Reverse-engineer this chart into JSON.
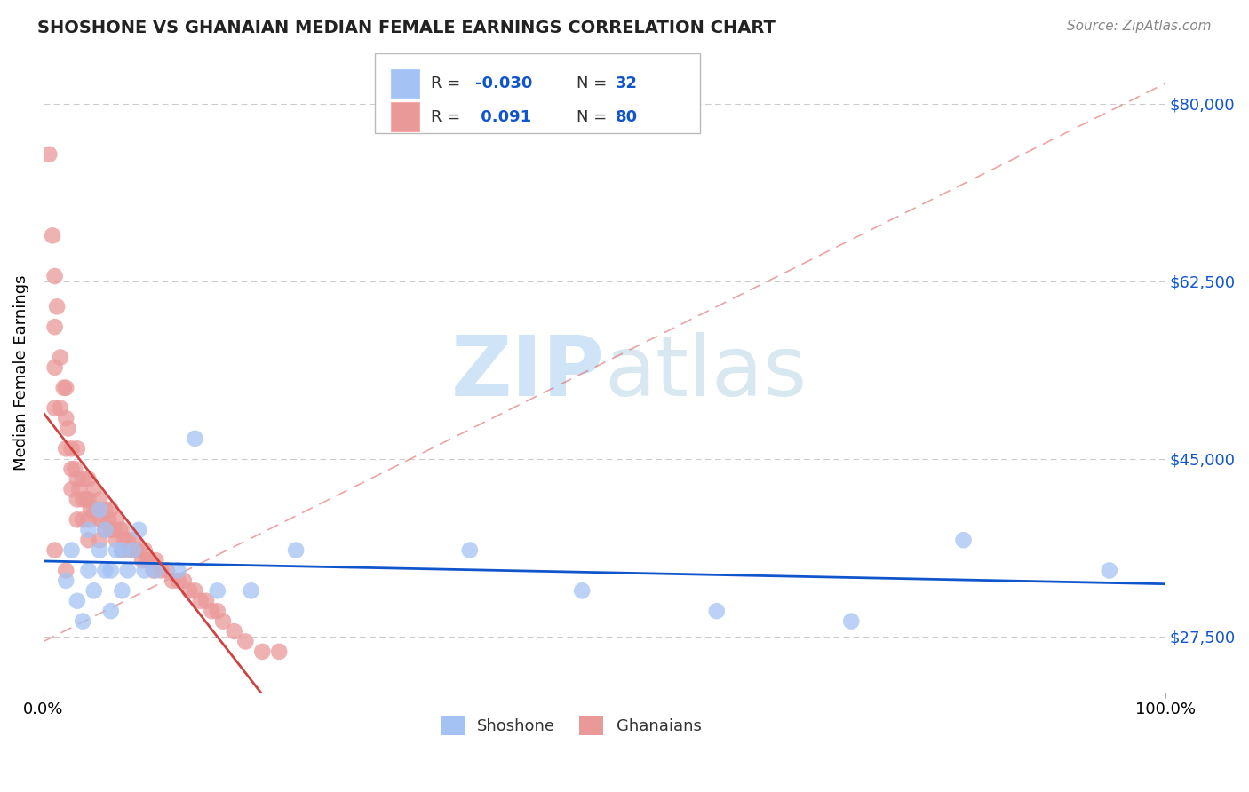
{
  "title": "SHOSHONE VS GHANAIAN MEDIAN FEMALE EARNINGS CORRELATION CHART",
  "source_text": "Source: ZipAtlas.com",
  "ylabel": "Median Female Earnings",
  "xlim": [
    0,
    1.0
  ],
  "ylim": [
    22000,
    85000
  ],
  "xtick_labels": [
    "0.0%",
    "100.0%"
  ],
  "xtick_positions": [
    0.0,
    1.0
  ],
  "ytick_labels": [
    "$27,500",
    "$45,000",
    "$62,500",
    "$80,000"
  ],
  "ytick_positions": [
    27500,
    45000,
    62500,
    80000
  ],
  "shoshone_color": "#a4c2f4",
  "ghanaian_color": "#ea9999",
  "shoshone_line_color": "#1155cc",
  "ghanaian_line_color": "#cc4444",
  "ref_line_color": "#e06666",
  "watermark_color": "#d0e4f7",
  "background_color": "#ffffff",
  "shoshone_x": [
    0.02,
    0.025,
    0.03,
    0.035,
    0.04,
    0.04,
    0.045,
    0.05,
    0.05,
    0.055,
    0.055,
    0.06,
    0.06,
    0.065,
    0.07,
    0.07,
    0.075,
    0.08,
    0.085,
    0.09,
    0.1,
    0.12,
    0.135,
    0.155,
    0.185,
    0.225,
    0.38,
    0.48,
    0.6,
    0.72,
    0.82,
    0.95
  ],
  "shoshone_y": [
    33000,
    36000,
    31000,
    29000,
    34000,
    38000,
    32000,
    36000,
    40000,
    34000,
    38000,
    30000,
    34000,
    36000,
    32000,
    36000,
    34000,
    36000,
    38000,
    34000,
    34000,
    34000,
    47000,
    32000,
    32000,
    36000,
    36000,
    32000,
    30000,
    29000,
    37000,
    34000
  ],
  "ghanaian_x": [
    0.005,
    0.008,
    0.01,
    0.01,
    0.01,
    0.01,
    0.012,
    0.015,
    0.015,
    0.018,
    0.02,
    0.02,
    0.02,
    0.022,
    0.025,
    0.025,
    0.025,
    0.028,
    0.03,
    0.03,
    0.03,
    0.03,
    0.032,
    0.035,
    0.035,
    0.035,
    0.038,
    0.04,
    0.04,
    0.04,
    0.04,
    0.042,
    0.045,
    0.045,
    0.048,
    0.05,
    0.05,
    0.05,
    0.052,
    0.055,
    0.055,
    0.058,
    0.06,
    0.06,
    0.062,
    0.065,
    0.065,
    0.068,
    0.07,
    0.07,
    0.072,
    0.075,
    0.078,
    0.08,
    0.082,
    0.085,
    0.088,
    0.09,
    0.092,
    0.095,
    0.098,
    0.1,
    0.105,
    0.11,
    0.115,
    0.12,
    0.125,
    0.13,
    0.135,
    0.14,
    0.145,
    0.15,
    0.155,
    0.16,
    0.17,
    0.18,
    0.195,
    0.21,
    0.01,
    0.02
  ],
  "ghanaian_y": [
    75000,
    67000,
    63000,
    58000,
    54000,
    50000,
    60000,
    55000,
    50000,
    52000,
    52000,
    49000,
    46000,
    48000,
    46000,
    44000,
    42000,
    44000,
    46000,
    43000,
    41000,
    39000,
    42000,
    43000,
    41000,
    39000,
    41000,
    43000,
    41000,
    39000,
    37000,
    40000,
    42000,
    40000,
    40000,
    41000,
    39000,
    37000,
    39000,
    40000,
    38000,
    39000,
    40000,
    38000,
    38000,
    39000,
    37000,
    38000,
    38000,
    36000,
    37000,
    37000,
    36000,
    37000,
    36000,
    36000,
    35000,
    36000,
    35000,
    35000,
    34000,
    35000,
    34000,
    34000,
    33000,
    33000,
    33000,
    32000,
    32000,
    31000,
    31000,
    30000,
    30000,
    29000,
    28000,
    27000,
    26000,
    26000,
    36000,
    34000
  ]
}
